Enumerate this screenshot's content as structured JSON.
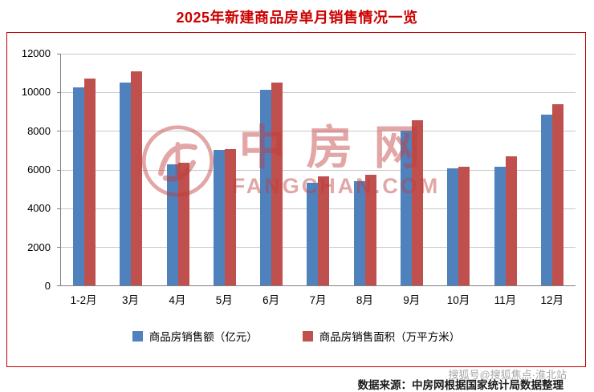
{
  "title": "2025年新建商品房单月销售情况一览",
  "watermark": {
    "brand": "中房网",
    "domain": "FANGCHAN.COM"
  },
  "footer": {
    "source": "数据来源：中房网根据国家统计局数据整理",
    "sohu": "搜狐号@搜狐焦点·淮北站"
  },
  "chart_data": {
    "type": "bar",
    "title": "2025年新建商品房单月销售情况一览",
    "categories": [
      "1-2月",
      "3月",
      "4月",
      "5月",
      "6月",
      "7月",
      "8月",
      "9月",
      "10月",
      "11月",
      "12月"
    ],
    "series": [
      {
        "name": "商品房销售额（亿元）",
        "color": "#4f81bd",
        "values": [
          10250,
          10500,
          6250,
          7000,
          10150,
          5300,
          5400,
          8000,
          6050,
          6150,
          8850
        ]
      },
      {
        "name": "商品房销售面积（万平方米）",
        "color": "#c0504d",
        "values": [
          10700,
          11100,
          6350,
          7050,
          10500,
          5650,
          5750,
          8550,
          6150,
          6700,
          9400
        ]
      }
    ],
    "xlabel": "",
    "ylabel": "",
    "ylim": [
      0,
      12000
    ],
    "ytick_step": 2000,
    "grid": true,
    "legend_position": "bottom"
  }
}
